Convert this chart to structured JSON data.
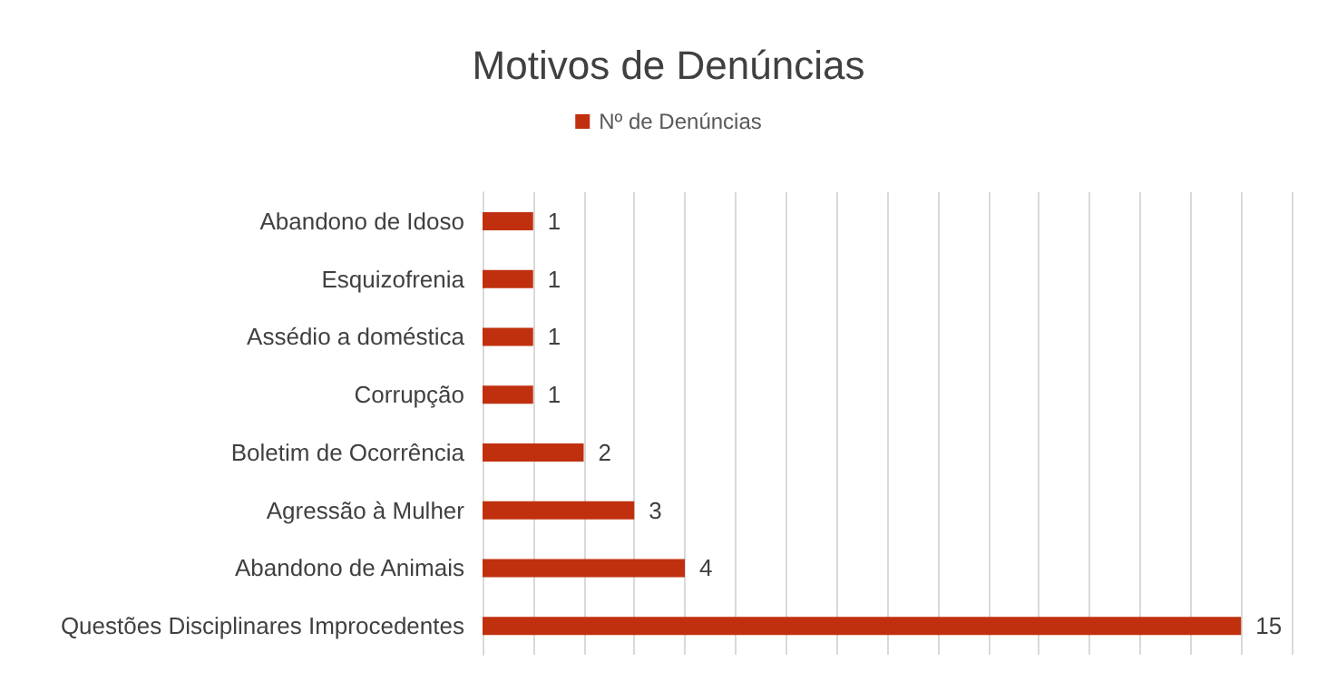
{
  "chart_data": {
    "type": "bar",
    "orientation": "horizontal",
    "title": "Motivos de Denúncias",
    "categories": [
      "Abandono de Idoso",
      "Esquizofrenia",
      "Assédio a doméstica",
      "Corrupção",
      "Boletim de Ocorrência",
      "Agressão à Mulher",
      "Abandono de Animais",
      "Questões Disciplinares Improcedentes"
    ],
    "series": [
      {
        "name": "Nº de Denúncias",
        "color": "#c0300e",
        "values": [
          1,
          1,
          1,
          1,
          2,
          3,
          4,
          15
        ]
      }
    ],
    "xlim": [
      0,
      16
    ],
    "xticks": [
      {
        "value": 0,
        "label": null
      },
      {
        "value": 1,
        "label": null
      },
      {
        "value": 2,
        "label": null
      },
      {
        "value": 3,
        "label": null
      },
      {
        "value": 4,
        "label": null
      },
      {
        "value": 5,
        "label": null
      },
      {
        "value": 6,
        "label": null
      },
      {
        "value": 7,
        "label": null
      },
      {
        "value": 8,
        "label": null
      },
      {
        "value": 9,
        "label": null
      },
      {
        "value": 10,
        "label": null
      },
      {
        "value": 11,
        "label": null
      },
      {
        "value": 12,
        "label": null
      },
      {
        "value": 13,
        "label": null
      },
      {
        "value": 14,
        "label": null
      },
      {
        "value": 15,
        "label": null
      },
      {
        "value": 16,
        "label": null
      }
    ],
    "tick_labels": "y",
    "grid": "x",
    "legend": "top",
    "data_labels": true
  }
}
